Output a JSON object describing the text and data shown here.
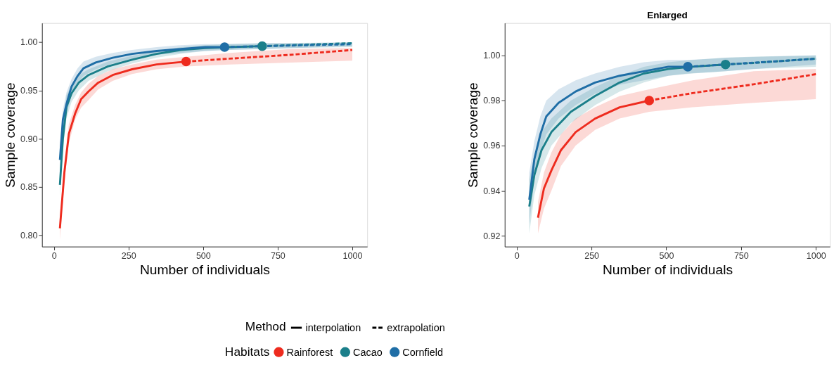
{
  "chart_data": [
    {
      "type": "line",
      "xlabel": "Number of individuals",
      "ylabel": "Sample coverage",
      "xlim": [
        -40,
        1050
      ],
      "ylim": [
        0.788,
        1.02
      ],
      "xticks": [
        0,
        250,
        500,
        750,
        1000
      ],
      "yticks": [
        {
          "value": 0.8,
          "label": "0.80"
        },
        {
          "value": 0.85,
          "label": "0.85"
        },
        {
          "value": 0.9,
          "label": "0.90"
        },
        {
          "value": 0.95,
          "label": "0.95"
        },
        {
          "value": 1.0,
          "label": "1.00"
        }
      ],
      "grid": false,
      "legend": "bottom",
      "legend_title": "Habitats",
      "annotations": [
        "Method",
        "interpolation",
        "extrapolation"
      ],
      "series": [
        {
          "name": "Rainforest",
          "color": "#ee2b1e",
          "line_style": "solid",
          "x": [
            20,
            35,
            50,
            71,
            91,
            116,
            148,
            197,
            262,
            344,
            443
          ],
          "values": [
            0.807,
            0.865,
            0.905,
            0.926,
            0.941,
            0.949,
            0.958,
            0.966,
            0.972,
            0.977,
            0.98
          ],
          "lower": [
            0.795,
            0.855,
            0.895,
            0.92,
            0.932,
            0.94,
            0.951,
            0.96,
            0.967,
            0.972,
            0.975
          ],
          "upper": [
            0.82,
            0.875,
            0.915,
            0.935,
            0.948,
            0.957,
            0.965,
            0.972,
            0.977,
            0.982,
            0.985
          ]
        },
        {
          "color": "#ee2b1e",
          "line_style": "dashed",
          "x": [
            443,
            588,
            792,
            1000
          ],
          "values": [
            0.98,
            0.983,
            0.987,
            0.992
          ],
          "lower": [
            0.975,
            0.977,
            0.979,
            0.981
          ],
          "upper": [
            0.985,
            0.989,
            0.993,
            0.994
          ]
        },
        {
          "name": "Cacao",
          "color": "#1b7f8a",
          "line_style": "solid",
          "x": [
            20,
            30,
            42,
            59,
            83,
            116,
            181,
            262,
            344,
            425,
            507,
            588,
            698
          ],
          "values": [
            0.852,
            0.9,
            0.933,
            0.947,
            0.958,
            0.966,
            0.975,
            0.982,
            0.988,
            0.992,
            0.994,
            0.995,
            0.996
          ],
          "lower": [
            0.84,
            0.89,
            0.921,
            0.938,
            0.95,
            0.96,
            0.97,
            0.978,
            0.984,
            0.988,
            0.991,
            0.992,
            0.993
          ],
          "upper": [
            0.865,
            0.91,
            0.945,
            0.956,
            0.966,
            0.972,
            0.98,
            0.986,
            0.991,
            0.995,
            0.997,
            0.998,
            0.999
          ]
        },
        {
          "color": "#1b7f8a",
          "line_style": "dashed",
          "x": [
            698,
            792,
            1000
          ],
          "values": [
            0.996,
            0.997,
            0.999
          ],
          "lower": [
            0.993,
            0.994,
            0.995
          ],
          "upper": [
            0.999,
            0.999,
            1.0
          ]
        },
        {
          "name": "Cornfield",
          "color": "#1f6ea6",
          "line_style": "solid",
          "x": [
            20,
            30,
            42,
            59,
            79,
            99,
            140,
            197,
            262,
            344,
            425,
            507,
            572
          ],
          "values": [
            0.878,
            0.92,
            0.936,
            0.954,
            0.965,
            0.973,
            0.979,
            0.984,
            0.988,
            0.991,
            0.993,
            0.995,
            0.995
          ],
          "lower": [
            0.865,
            0.91,
            0.925,
            0.945,
            0.957,
            0.965,
            0.972,
            0.978,
            0.983,
            0.987,
            0.989,
            0.991,
            0.992
          ],
          "upper": [
            0.89,
            0.93,
            0.948,
            0.962,
            0.973,
            0.98,
            0.985,
            0.989,
            0.992,
            0.995,
            0.997,
            0.998,
            0.998
          ]
        },
        {
          "color": "#1f6ea6",
          "line_style": "dashed",
          "x": [
            572,
            698,
            1000
          ],
          "values": [
            0.995,
            0.996,
            0.998
          ],
          "lower": [
            0.992,
            0.993,
            0.996
          ],
          "upper": [
            0.998,
            0.999,
            1.0
          ]
        },
        {
          "type": "scatter",
          "marker": "circle",
          "x": [
            443,
            572,
            698
          ],
          "values": [
            0.98,
            0.995,
            0.996
          ],
          "colors": [
            "#ee2b1e",
            "#1f6ea6",
            "#1b7f8a"
          ]
        }
      ]
    },
    {
      "type": "line",
      "title": "Enlarged",
      "xlabel": "Number of individuals",
      "ylabel": "Sample coverage",
      "xlim": [
        -40,
        1047
      ],
      "ylim": [
        0.9152,
        1.0144
      ],
      "xticks": [
        0,
        250,
        500,
        750,
        1000
      ],
      "yticks": [
        {
          "value": 0.92,
          "label": "0.92"
        },
        {
          "value": 0.94,
          "label": "0.94"
        },
        {
          "value": 0.96,
          "label": "0.96"
        },
        {
          "value": 0.98,
          "label": "0.98"
        },
        {
          "value": 1.0,
          "label": "1.00"
        }
      ],
      "grid": false,
      "legend": false,
      "series": [
        {
          "color": "#ee2b1e",
          "line_style": "solid",
          "x": [
            71,
            91,
            116,
            148,
            197,
            262,
            344,
            443
          ],
          "values": [
            0.928,
            0.941,
            0.949,
            0.958,
            0.966,
            0.972,
            0.977,
            0.98
          ],
          "lower": [
            0.921,
            0.932,
            0.94,
            0.951,
            0.96,
            0.967,
            0.972,
            0.975
          ],
          "upper": [
            0.935,
            0.948,
            0.957,
            0.965,
            0.972,
            0.977,
            0.982,
            0.985
          ]
        },
        {
          "color": "#ee2b1e",
          "line_style": "dashed",
          "x": [
            443,
            588,
            792,
            1000
          ],
          "values": [
            0.98,
            0.9833,
            0.9872,
            0.9917
          ],
          "lower": [
            0.975,
            0.977,
            0.979,
            0.9806
          ],
          "upper": [
            0.985,
            0.989,
            0.993,
            0.994
          ]
        },
        {
          "color": "#1b7f8a",
          "line_style": "solid",
          "x": [
            42,
            59,
            83,
            116,
            181,
            262,
            344,
            425,
            507,
            588,
            698
          ],
          "values": [
            0.933,
            0.947,
            0.958,
            0.966,
            0.975,
            0.982,
            0.988,
            0.992,
            0.994,
            0.995,
            0.996
          ],
          "lower": [
            0.921,
            0.938,
            0.95,
            0.96,
            0.97,
            0.978,
            0.984,
            0.988,
            0.991,
            0.992,
            0.993
          ],
          "upper": [
            0.945,
            0.956,
            0.966,
            0.972,
            0.98,
            0.986,
            0.991,
            0.995,
            0.997,
            0.998,
            0.999
          ]
        },
        {
          "color": "#1b7f8a",
          "line_style": "dashed",
          "x": [
            698,
            792,
            1000
          ],
          "values": [
            0.996,
            0.9967,
            0.9986
          ],
          "lower": [
            0.993,
            0.994,
            0.995
          ],
          "upper": [
            0.999,
            0.9995,
            1.0
          ]
        },
        {
          "color": "#1f6ea6",
          "line_style": "solid",
          "x": [
            42,
            59,
            79,
            99,
            140,
            197,
            262,
            344,
            425,
            507,
            572
          ],
          "values": [
            0.936,
            0.954,
            0.965,
            0.973,
            0.979,
            0.984,
            0.988,
            0.991,
            0.993,
            0.995,
            0.995
          ],
          "lower": [
            0.925,
            0.945,
            0.957,
            0.965,
            0.972,
            0.978,
            0.983,
            0.987,
            0.989,
            0.991,
            0.992
          ],
          "upper": [
            0.948,
            0.962,
            0.973,
            0.98,
            0.985,
            0.989,
            0.992,
            0.995,
            0.997,
            0.998,
            0.998
          ]
        },
        {
          "color": "#1f6ea6",
          "line_style": "dashed",
          "x": [
            572,
            698,
            1000
          ],
          "values": [
            0.995,
            0.996,
            0.9985
          ],
          "lower": [
            0.992,
            0.993,
            0.996
          ],
          "upper": [
            0.998,
            0.999,
            1.0
          ]
        },
        {
          "type": "scatter",
          "marker": "circle",
          "x": [
            443,
            572,
            698
          ],
          "values": [
            0.98,
            0.995,
            0.996
          ],
          "colors": [
            "#ee2b1e",
            "#1f6ea6",
            "#1b7f8a"
          ]
        }
      ]
    }
  ]
}
